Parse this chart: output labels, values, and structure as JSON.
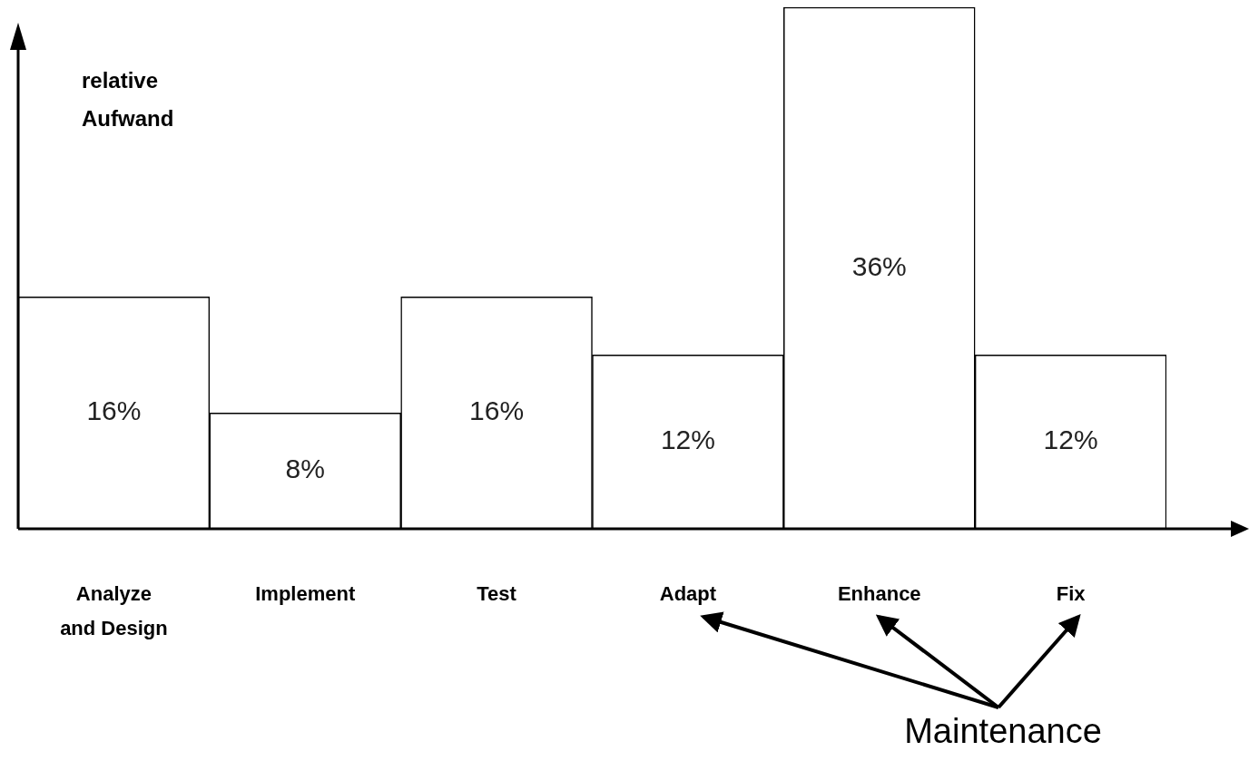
{
  "chart_data": {
    "type": "bar",
    "ylabel": "relative\nAufwand",
    "categories": [
      "Analyze\nand Design",
      "Implement",
      "Test",
      "Adapt",
      "Enhance",
      "Fix"
    ],
    "values": [
      16,
      8,
      16,
      12,
      36,
      12
    ],
    "color": "#ffffff",
    "value_labels": [
      "16%",
      "8%",
      "16%",
      "12%",
      "36%",
      "12%"
    ],
    "legend": false,
    "annotations": [
      "Maintenance"
    ]
  }
}
